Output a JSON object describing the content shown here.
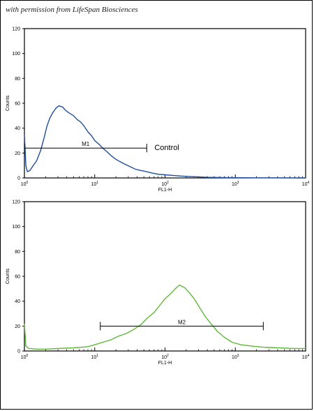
{
  "credit_text": "with permission from LifeSpan Biosciences",
  "chart_data": [
    {
      "type": "line",
      "title": "",
      "xlabel": "FL1-H",
      "ylabel": "Counts",
      "x_scale": "log",
      "xlim": [
        1,
        10000
      ],
      "ylim": [
        0,
        120
      ],
      "y_ticks": [
        "0",
        "20",
        "40",
        "60",
        "80",
        "100",
        "120"
      ],
      "x_ticks": [
        {
          "base": "10",
          "exp": "0"
        },
        {
          "base": "10",
          "exp": "1"
        },
        {
          "base": "10",
          "exp": "2"
        },
        {
          "base": "10",
          "exp": "3"
        },
        {
          "base": "10",
          "exp": "4"
        }
      ],
      "color": "#1f4e9e",
      "series": [
        {
          "x": [
            1.0,
            1.05,
            1.1,
            1.2,
            1.3,
            1.5,
            1.7,
            1.9,
            2.1,
            2.3,
            2.5,
            2.8,
            3.1,
            3.5,
            3.9,
            4.4,
            5.0,
            5.6,
            6.3,
            7.0,
            8.0,
            9.0,
            10.0,
            11.5,
            13.0,
            15.0,
            17.0,
            20.0,
            23.0,
            27.0,
            32.0,
            38.0,
            45.0,
            55.0,
            65.0,
            80.0,
            100.0,
            130.0,
            170.0,
            250.0,
            400.0,
            700.0,
            1000.0,
            2000.0,
            10000.0
          ],
          "y": [
            35,
            10,
            5,
            6,
            9,
            14,
            22,
            32,
            42,
            48,
            52,
            56,
            58,
            57,
            54,
            52,
            50,
            47,
            45,
            42,
            37,
            34,
            30,
            27,
            24,
            21,
            18,
            15,
            13,
            11,
            9,
            7,
            6,
            5,
            4,
            3,
            2.5,
            2,
            1.5,
            1,
            0.5,
            0.3,
            0.2,
            0.1,
            0
          ]
        }
      ],
      "marker": {
        "label": "M1",
        "x_start": 1,
        "x_end": 55,
        "y": 24
      },
      "annotation": "Control"
    },
    {
      "type": "line",
      "title": "",
      "xlabel": "FL1-H",
      "ylabel": "Counts",
      "x_scale": "log",
      "xlim": [
        1,
        10000
      ],
      "ylim": [
        0,
        120
      ],
      "y_ticks": [
        "0",
        "20",
        "40",
        "60",
        "80",
        "100",
        "120"
      ],
      "x_ticks": [
        {
          "base": "10",
          "exp": "0"
        },
        {
          "base": "10",
          "exp": "1"
        },
        {
          "base": "10",
          "exp": "2"
        },
        {
          "base": "10",
          "exp": "3"
        },
        {
          "base": "10",
          "exp": "4"
        }
      ],
      "color": "#5fb83a",
      "series": [
        {
          "x": [
            1.0,
            1.05,
            1.15,
            1.5,
            2.0,
            3.0,
            5.0,
            8.0,
            10.0,
            13.0,
            17.0,
            22.0,
            28.0,
            35.0,
            45.0,
            55.0,
            70.0,
            85.0,
            100.0,
            120.0,
            140.0,
            160.0,
            190.0,
            220.0,
            260.0,
            310.0,
            370.0,
            450.0,
            550.0,
            700.0,
            900.0,
            1200.0,
            1700.0,
            2500.0,
            4000.0,
            7000.0,
            10000.0
          ],
          "y": [
            22,
            4,
            2,
            1.5,
            1.5,
            2,
            2.5,
            3.5,
            5,
            7,
            9,
            12,
            14,
            17,
            21,
            26,
            31,
            37,
            42,
            46,
            50,
            53,
            51,
            47,
            42,
            35,
            28,
            22,
            16,
            11,
            7,
            5,
            4,
            3,
            2.5,
            2,
            2
          ]
        }
      ],
      "marker": {
        "label": "M2",
        "x_start": 12,
        "x_end": 2500,
        "y": 20
      }
    }
  ]
}
